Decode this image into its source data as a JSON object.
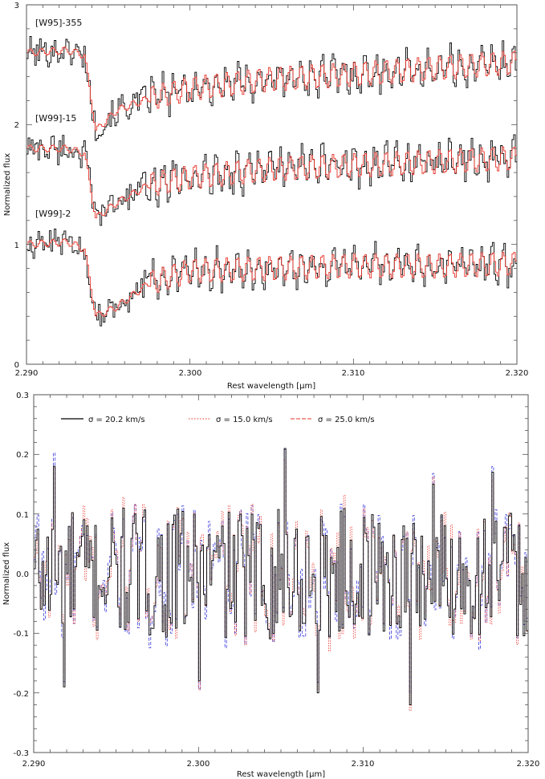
{
  "chart_data": [
    {
      "type": "line",
      "xlabel": "Rest wavelength [μm]",
      "ylabel": "Normalized flux",
      "xlim": [
        2.29,
        2.32
      ],
      "ylim": [
        0,
        3
      ],
      "x_ticks": [
        "2.290",
        "2.300",
        "2.310",
        "2.320"
      ],
      "y_ticks": [
        "0",
        "1",
        "2",
        "3"
      ],
      "grid": false,
      "colors": {
        "observed": "#000000",
        "model": "#e8342a"
      },
      "series": [
        {
          "name": "[W95]-355",
          "offset": 2.6,
          "continuum": 2.6,
          "points": [
            [
              2.29,
              2.6
            ],
            [
              2.2925,
              2.62
            ],
            [
              2.2935,
              2.58
            ],
            [
              2.2942,
              1.95
            ],
            [
              2.2955,
              2.12
            ],
            [
              2.2975,
              2.22
            ],
            [
              2.3,
              2.3
            ],
            [
              2.305,
              2.38
            ],
            [
              2.31,
              2.42
            ],
            [
              2.315,
              2.47
            ],
            [
              2.32,
              2.52
            ]
          ]
        },
        {
          "name": "[W99]-15",
          "offset": 1.75,
          "continuum": 1.75,
          "points": [
            [
              2.29,
              1.8
            ],
            [
              2.2925,
              1.8
            ],
            [
              2.2935,
              1.76
            ],
            [
              2.2942,
              1.22
            ],
            [
              2.2955,
              1.35
            ],
            [
              2.2975,
              1.5
            ],
            [
              2.3,
              1.56
            ],
            [
              2.305,
              1.63
            ],
            [
              2.31,
              1.66
            ],
            [
              2.315,
              1.69
            ],
            [
              2.32,
              1.72
            ]
          ]
        },
        {
          "name": "[W99]-2",
          "offset": 1.0,
          "continuum": 1.0,
          "points": [
            [
              2.29,
              1.0
            ],
            [
              2.2925,
              1.02
            ],
            [
              2.2935,
              0.96
            ],
            [
              2.2942,
              0.4
            ],
            [
              2.2955,
              0.48
            ],
            [
              2.2975,
              0.68
            ],
            [
              2.3,
              0.78
            ],
            [
              2.305,
              0.8
            ],
            [
              2.31,
              0.82
            ],
            [
              2.315,
              0.82
            ],
            [
              2.32,
              0.84
            ]
          ]
        }
      ]
    },
    {
      "type": "line",
      "xlabel": "Rest wavelength [μm]",
      "ylabel": "Normalized flux",
      "xlim": [
        2.29,
        2.32
      ],
      "ylim": [
        -0.3,
        0.3
      ],
      "x_ticks": [
        "2.290",
        "2.300",
        "2.310",
        "2.320"
      ],
      "y_ticks": [
        "-0.3",
        "-0.2",
        "-0.1",
        "0.0",
        "0.1",
        "0.2",
        "0.3"
      ],
      "grid": false,
      "legend": [
        {
          "label": "σ = 20.2 km/s",
          "color": "#000000",
          "style": "solid"
        },
        {
          "label": "σ = 15.0 km/s",
          "color": "#e8342a",
          "style": "dotted"
        },
        {
          "label": "σ = 25.0 km/s",
          "color": "#e8342a",
          "style": "dashed"
        }
      ],
      "residual_color_alt": "#3b3bdc",
      "features": [
        {
          "x": 2.2912,
          "y": 0.18
        },
        {
          "x": 2.2918,
          "y": -0.19
        },
        {
          "x": 2.3,
          "y": -0.18
        },
        {
          "x": 2.3052,
          "y": 0.21
        },
        {
          "x": 2.3072,
          "y": -0.2
        },
        {
          "x": 2.3128,
          "y": -0.22
        },
        {
          "x": 2.3142,
          "y": 0.15
        },
        {
          "x": 2.3178,
          "y": 0.17
        }
      ]
    }
  ]
}
